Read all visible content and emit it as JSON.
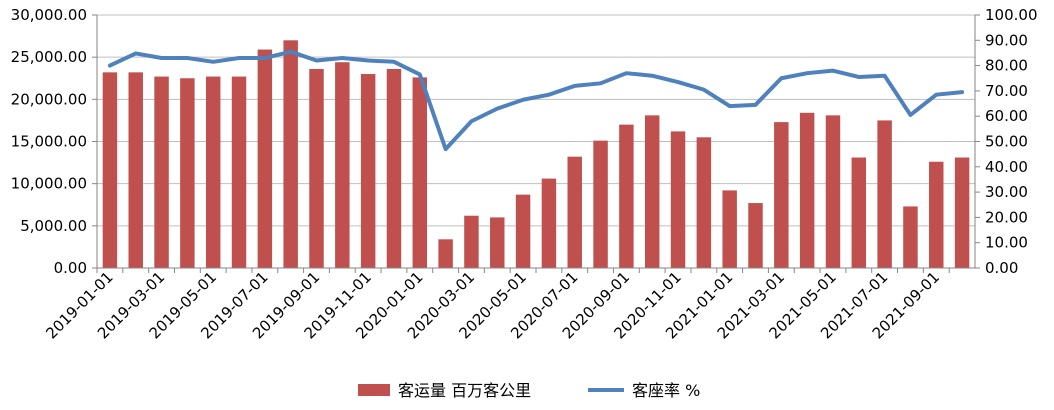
{
  "chart_data": {
    "type": "bar",
    "x": [
      "2019-01-01",
      "2019-02-01",
      "2019-03-01",
      "2019-04-01",
      "2019-05-01",
      "2019-06-01",
      "2019-07-01",
      "2019-08-01",
      "2019-09-01",
      "2019-10-01",
      "2019-11-01",
      "2019-12-01",
      "2020-01-01",
      "2020-02-01",
      "2020-03-01",
      "2020-04-01",
      "2020-05-01",
      "2020-06-01",
      "2020-07-01",
      "2020-08-01",
      "2020-09-01",
      "2020-10-01",
      "2020-11-01",
      "2020-12-01",
      "2021-01-01",
      "2021-02-01",
      "2021-03-01",
      "2021-04-01",
      "2021-05-01",
      "2021-06-01",
      "2021-07-01",
      "2021-08-01",
      "2021-09-01",
      "2021-10-01"
    ],
    "x_tick_labels": [
      "2019-01-01",
      "2019-03-01",
      "2019-05-01",
      "2019-07-01",
      "2019-09-01",
      "2019-11-01",
      "2020-01-01",
      "2020-03-01",
      "2020-05-01",
      "2020-07-01",
      "2020-09-01",
      "2020-11-01",
      "2021-01-01",
      "2021-03-01",
      "2021-05-01",
      "2021-07-01",
      "2021-09-01"
    ],
    "series": [
      {
        "name": "客运量 百万客公里",
        "type": "bar",
        "axis": "left",
        "color": "#C0504D",
        "values": [
          23200,
          23200,
          22700,
          22500,
          22700,
          22700,
          25900,
          27000,
          23600,
          24400,
          23000,
          23600,
          22600,
          3400,
          6200,
          6000,
          8700,
          10600,
          13200,
          15100,
          17000,
          18100,
          16200,
          15500,
          9200,
          7700,
          17300,
          18400,
          18100,
          13100,
          17500,
          7300,
          12600,
          13100
        ]
      },
      {
        "name": "客座率 %",
        "type": "line",
        "axis": "right",
        "color": "#4F81BD",
        "values": [
          80,
          84.8,
          83,
          83,
          81.5,
          83,
          83,
          85.5,
          82,
          83,
          82,
          81.5,
          76.5,
          47,
          58,
          63,
          66.5,
          68.5,
          72,
          73,
          77,
          76,
          73.5,
          70.5,
          64,
          64.5,
          75,
          77,
          78,
          75.5,
          76,
          60.5,
          68.5,
          69.5
        ]
      }
    ],
    "left_axis": {
      "ylim": [
        0,
        30000
      ],
      "ticks": [
        "0.00",
        "5,000.00",
        "10,000.00",
        "15,000.00",
        "20,000.00",
        "25,000.00",
        "30,000.00"
      ]
    },
    "right_axis": {
      "ylim": [
        0,
        100
      ],
      "ticks": [
        "0.00",
        "10.00",
        "20.00",
        "30.00",
        "40.00",
        "50.00",
        "60.00",
        "70.00",
        "80.00",
        "90.00",
        "100.00"
      ]
    },
    "grid": true,
    "legend_position": "bottom"
  }
}
